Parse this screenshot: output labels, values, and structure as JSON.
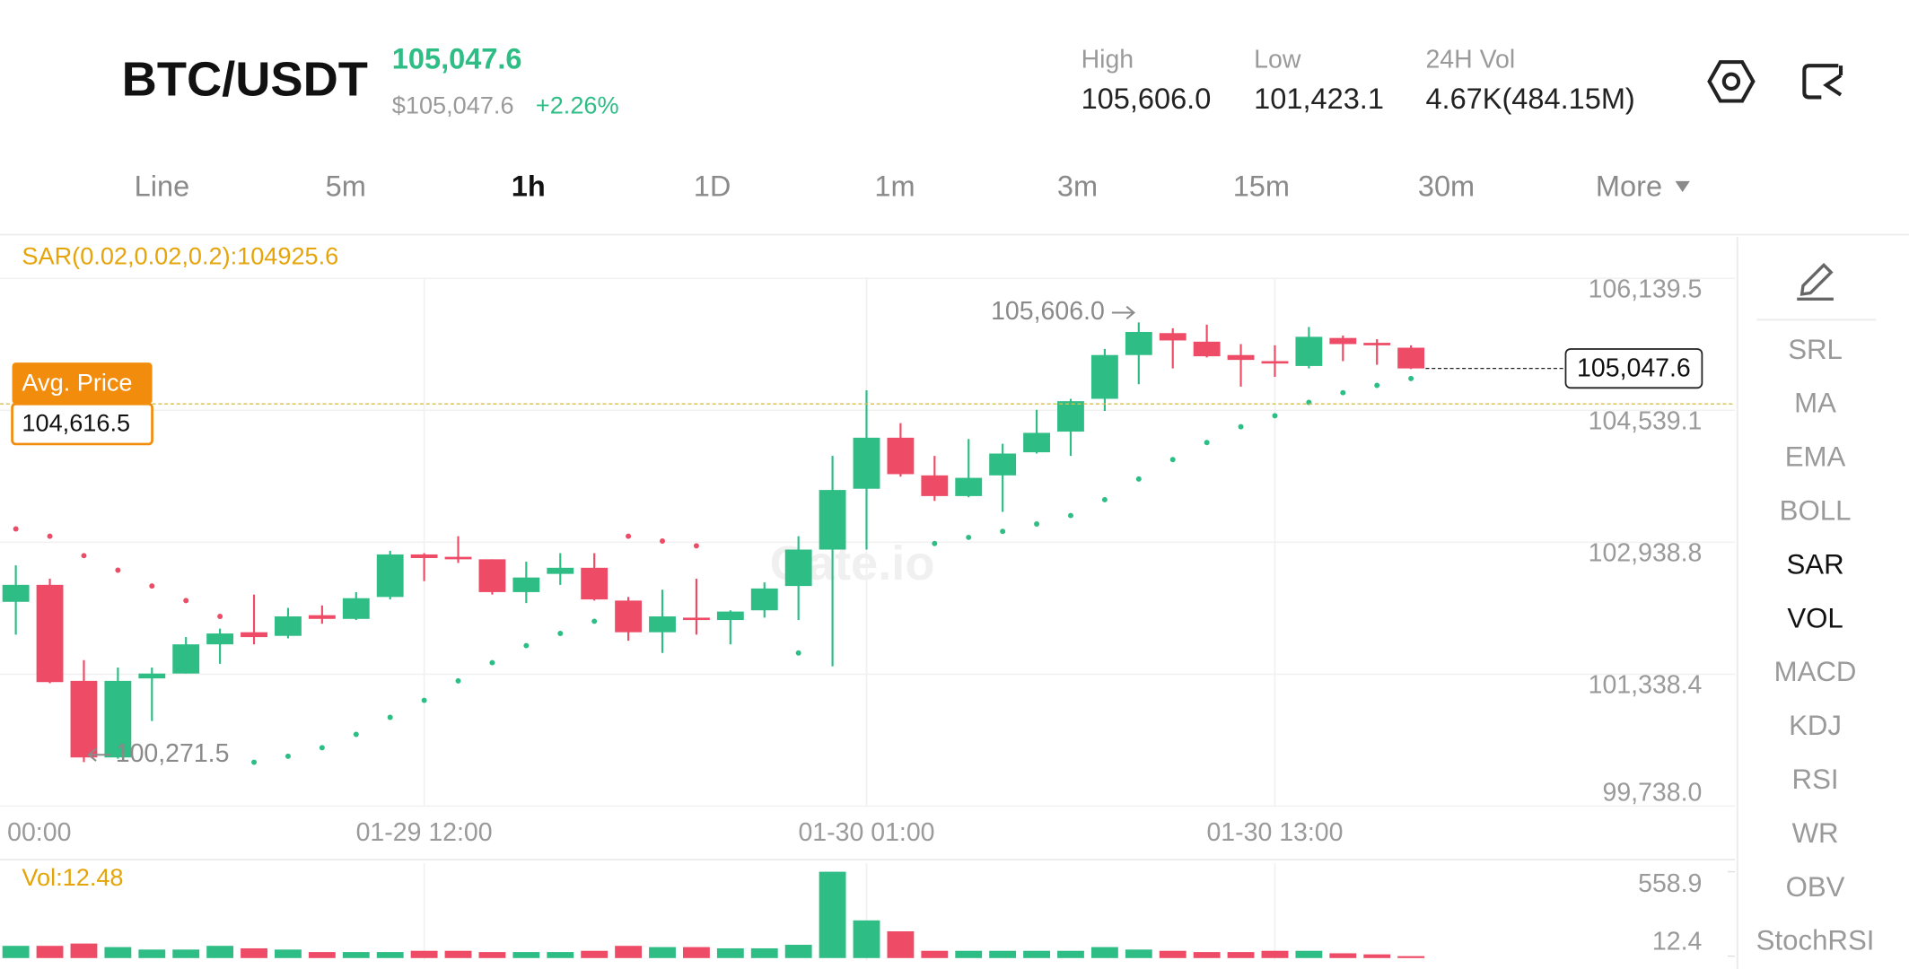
{
  "header": {
    "symbol": "BTC/USDT",
    "price": "105,047.6",
    "fiat_price": "$105,047.6",
    "change": "+2.26%",
    "stats": [
      {
        "label": "High",
        "value": "105,606.0"
      },
      {
        "label": "Low",
        "value": "101,423.1"
      },
      {
        "label": "24H Vol",
        "value": "4.67K(484.15M)"
      }
    ]
  },
  "tabs": {
    "items": [
      "Line",
      "5m",
      "1h",
      "1D",
      "1m",
      "3m",
      "15m",
      "30m",
      "More"
    ],
    "active_index": 2
  },
  "sidebar": {
    "items": [
      "SRL",
      "MA",
      "EMA",
      "BOLL",
      "SAR",
      "VOL",
      "MACD",
      "KDJ",
      "RSI",
      "WR",
      "OBV",
      "StochRSI"
    ],
    "active_indices": [
      4,
      5
    ]
  },
  "chart_data": {
    "type": "candlestick",
    "watermark": "Gate.io",
    "categories": [
      "00:00",
      null,
      null,
      null,
      null,
      null,
      null,
      null,
      null,
      null,
      null,
      null,
      "01-29 12:00",
      null,
      null,
      null,
      null,
      null,
      null,
      null,
      null,
      null,
      null,
      null,
      null,
      "01-30 01:00",
      null,
      null,
      null,
      null,
      null,
      null,
      null,
      null,
      null,
      null,
      null,
      "01-30 13:00",
      null,
      null,
      null,
      null
    ],
    "open": [
      102216,
      102422,
      101257,
      100328,
      101287,
      101346,
      101700,
      101847,
      101803,
      102054,
      102009,
      102275,
      102791,
      102762,
      102732,
      102334,
      102555,
      102629,
      102231,
      101847,
      102024,
      101995,
      102113,
      102408,
      102850,
      103588,
      104207,
      103750,
      103499,
      103750,
      104030,
      104281,
      104679,
      105210,
      105476,
      105372,
      105210,
      105136,
      105077,
      105417,
      105358,
      105299
    ],
    "high": [
      102658,
      102496,
      101508,
      101419,
      101419,
      101788,
      101891,
      102304,
      102142,
      102172,
      102334,
      102835,
      102806,
      103012,
      102732,
      102703,
      102806,
      102806,
      102275,
      102363,
      102496,
      102113,
      102452,
      103012,
      103986,
      104782,
      104384,
      103986,
      104192,
      104133,
      104546,
      104679,
      105284,
      105606.0,
      105535,
      105579,
      105343,
      105328,
      105550,
      105446,
      105402,
      105328
    ],
    "low": [
      101818,
      101228,
      100271.5,
      100313,
      100770,
      101346,
      101464,
      101700,
      101773,
      101950,
      101995,
      102245,
      102467,
      102688,
      102304,
      102201,
      102422,
      102231,
      101744,
      101596,
      101818,
      101700,
      102024,
      101995,
      101434,
      102850,
      103735,
      103440,
      103484,
      103307,
      104015,
      103986,
      104532,
      104856,
      105048,
      105181,
      104827,
      104945,
      105048,
      105136,
      105092,
      105040
    ],
    "close": [
      102422,
      101242,
      100328,
      101257,
      101346,
      101700,
      101832,
      101788,
      102039,
      102009,
      102260,
      102791,
      102747,
      102732,
      102334,
      102511,
      102629,
      102245,
      101847,
      102039,
      101995,
      102098,
      102378,
      102850,
      103573,
      104207,
      103765,
      103499,
      103720,
      104015,
      104266,
      104650,
      105210,
      105490,
      105387,
      105195,
      105151,
      105107,
      105431,
      105343,
      105328,
      105047.6
    ],
    "up_color": "#2ebd85",
    "down_color": "#ee4b66",
    "ylim": [
      99738.0,
      106139.5
    ],
    "yticks": [
      {
        "value": 106139.5,
        "label": "106,139.5"
      },
      {
        "value": 104539.1,
        "label": "104,539.1"
      },
      {
        "value": 102938.8,
        "label": "102,938.8"
      },
      {
        "value": 101338.4,
        "label": "101,338.4"
      },
      {
        "value": 99738.0,
        "label": "99,738.0"
      }
    ],
    "grid": true,
    "sar": {
      "label": "SAR(0.02,0.02,0.2):104925.6",
      "above_color": "#ee4b66",
      "below_color": "#2ebd85",
      "values": [
        103101,
        103012,
        102776,
        102600,
        102408,
        102231,
        102039,
        100270,
        100343,
        100446,
        100608,
        100815,
        101021,
        101257,
        101478,
        101685,
        101832,
        101980,
        103012,
        102954,
        102895,
        null,
        null,
        101596,
        null,
        null,
        null,
        102924,
        102998,
        103071,
        103160,
        103263,
        103455,
        103706,
        103941,
        104148,
        104340,
        104473,
        104635,
        104753,
        104842,
        104925.6
      ]
    },
    "last_price": {
      "value": 105047.6,
      "label": "105,047.6"
    },
    "avg_price": {
      "name": "Avg. Price",
      "value": 104616.5,
      "label": "104,616.5"
    },
    "high_marker": {
      "value": 105606.0,
      "label": "105,606.0"
    },
    "low_marker": {
      "value": 100271.5,
      "label": "100,271.5"
    },
    "volume": {
      "label": "Vol:12.48",
      "ylim": [
        0,
        558.9
      ],
      "yticks": [
        558.9,
        12.4
      ],
      "values": [
        79,
        79,
        94,
        71,
        55,
        55,
        79,
        63,
        55,
        39,
        39,
        39,
        47,
        47,
        39,
        39,
        39,
        47,
        79,
        71,
        71,
        63,
        63,
        86,
        558.9,
        244,
        173,
        47,
        47,
        47,
        47,
        47,
        71,
        55,
        47,
        39,
        39,
        47,
        47,
        31,
        24,
        12.48
      ]
    }
  }
}
